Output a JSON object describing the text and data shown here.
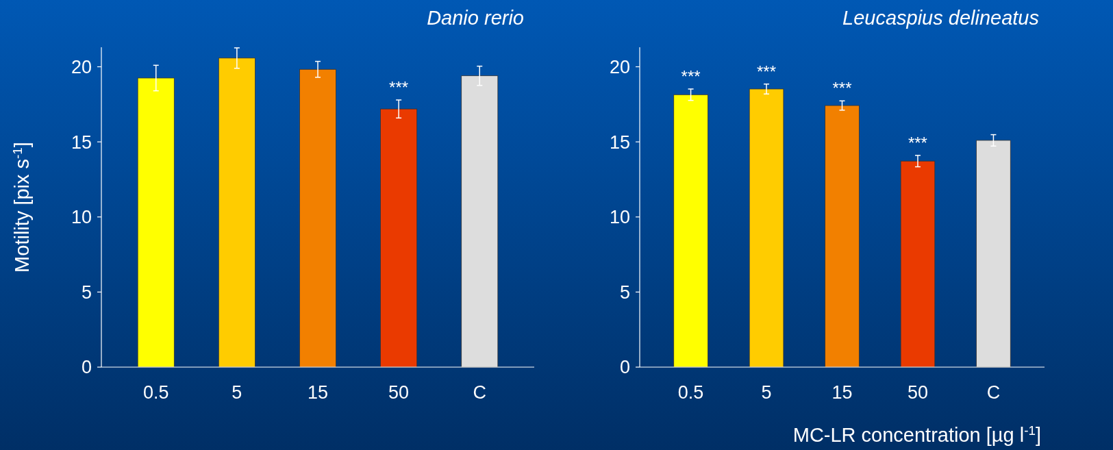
{
  "chart_data": [
    {
      "type": "bar",
      "title": "Danio rerio",
      "ylabel": "Motility [pix s$^{-1}$]",
      "categories": [
        "0.5",
        "5",
        "15",
        "50",
        "C"
      ],
      "values": [
        19.25,
        20.58,
        19.83,
        17.19,
        19.4
      ],
      "errors": [
        0.85,
        0.68,
        0.53,
        0.6,
        0.64
      ],
      "colors": [
        "#ffff00",
        "#ffcc00",
        "#f28000",
        "#ea3a00",
        "#dddddd"
      ],
      "ylim": [
        0,
        21.3
      ],
      "yticks": [
        0,
        5,
        10,
        15,
        20
      ],
      "grid": false,
      "value_labels": [
        null,
        null,
        null,
        "***",
        null
      ]
    },
    {
      "type": "bar",
      "title": "Leucaspius delineatus",
      "xlabel": "MC-LR concentration [µg l$^{-1}$]",
      "categories": [
        "0.5",
        "5",
        "15",
        "50",
        "C"
      ],
      "values": [
        18.14,
        18.52,
        17.42,
        13.72,
        15.1
      ],
      "errors": [
        0.38,
        0.33,
        0.31,
        0.38,
        0.38
      ],
      "colors": [
        "#ffff00",
        "#ffcc00",
        "#f28000",
        "#ea3a00",
        "#dddddd"
      ],
      "ylim": [
        0,
        21.3
      ],
      "yticks": [
        0,
        5,
        10,
        15,
        20
      ],
      "grid": false,
      "value_labels": [
        "***",
        "***",
        "***",
        "***",
        null
      ]
    }
  ]
}
